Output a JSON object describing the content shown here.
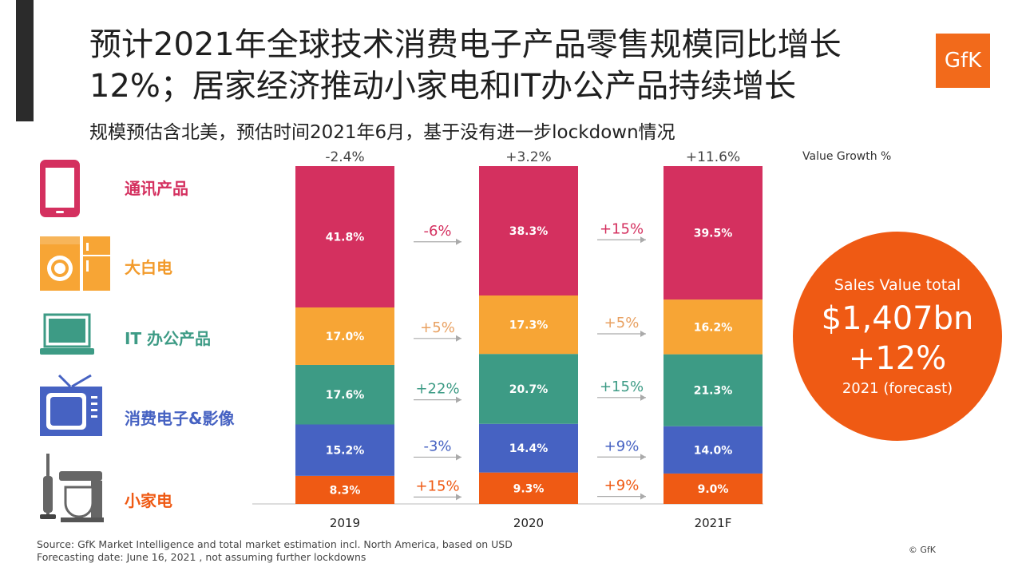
{
  "header": {
    "title": "预计2021年全球技术消费电子产品零售规模同比增长12%；居家经济推动小家电和IT办公产品持续增长",
    "subtitle": "规模预估含北美，预估时间2021年6月，基于没有进一步lockdown情况",
    "logo": "GfK"
  },
  "colors": {
    "telecom": "#d4305f",
    "white_goods": "#f7a535",
    "it_office": "#3d9b85",
    "consumer_electronics": "#4662c2",
    "small_appliances": "#ef5a14",
    "text_orange": "#e8a060",
    "text_green": "#3d9b85",
    "text_blue": "#4662c2",
    "text_red": "#d4305f",
    "text_sa": "#ef5a14"
  },
  "legend": [
    {
      "label": "通讯产品",
      "icon": "smartphone-icon"
    },
    {
      "label": "大白电",
      "icon": "washer-fridge-icon"
    },
    {
      "label": "IT 办公产品",
      "icon": "laptop-icon"
    },
    {
      "label": "消费电子&影像",
      "icon": "tv-icon"
    },
    {
      "label": "小家电",
      "icon": "vacuum-mixer-icon"
    }
  ],
  "circle": {
    "line1": "Sales Value total",
    "line2": "$1,407bn",
    "line3": "+12%",
    "line4": "2021 (forecast)"
  },
  "footer": {
    "line1": "Source: GfK Market Intelligence and total market estimation incl. North America, based on USD",
    "line2": "Forecasting date: June 16, 2021 , not assuming further lockdowns",
    "copyright": "© GfK"
  },
  "chart_data": {
    "type": "bar",
    "stacked": true,
    "percent_stacked": true,
    "categories": [
      "2019",
      "2020",
      "2021F"
    ],
    "growth_label": "Value Growth %",
    "growth": [
      "-2.4%",
      "+3.2%",
      "+11.6%"
    ],
    "series": [
      {
        "name": "小家电",
        "key": "small_appliances",
        "values": [
          8.3,
          9.3,
          9.0
        ],
        "labels": [
          "8.3%",
          "9.3%",
          "9.0%"
        ]
      },
      {
        "name": "消费电子&影像",
        "key": "consumer_electronics",
        "values": [
          15.2,
          14.4,
          14.0
        ],
        "labels": [
          "15.2%",
          "14.4%",
          "14.0%"
        ]
      },
      {
        "name": "IT 办公产品",
        "key": "it_office",
        "values": [
          17.6,
          20.7,
          21.3
        ],
        "labels": [
          "17.6%",
          "20.7%",
          "21.3%"
        ]
      },
      {
        "name": "大白电",
        "key": "white_goods",
        "values": [
          17.0,
          17.3,
          16.2
        ],
        "labels": [
          "17.0%",
          "17.3%",
          "16.2%"
        ]
      },
      {
        "name": "通讯产品",
        "key": "telecom",
        "values": [
          41.8,
          38.3,
          39.5
        ],
        "labels": [
          "41.8%",
          "38.3%",
          "39.5%"
        ]
      }
    ],
    "transitions": [
      {
        "telecom": "-6%",
        "white_goods": "+5%",
        "it_office": "+22%",
        "consumer_electronics": "-3%",
        "small_appliances": "+15%"
      },
      {
        "telecom": "+15%",
        "white_goods": "+5%",
        "it_office": "+15%",
        "consumer_electronics": "+9%",
        "small_appliances": "+9%"
      }
    ],
    "ylim": [
      0,
      100
    ]
  }
}
